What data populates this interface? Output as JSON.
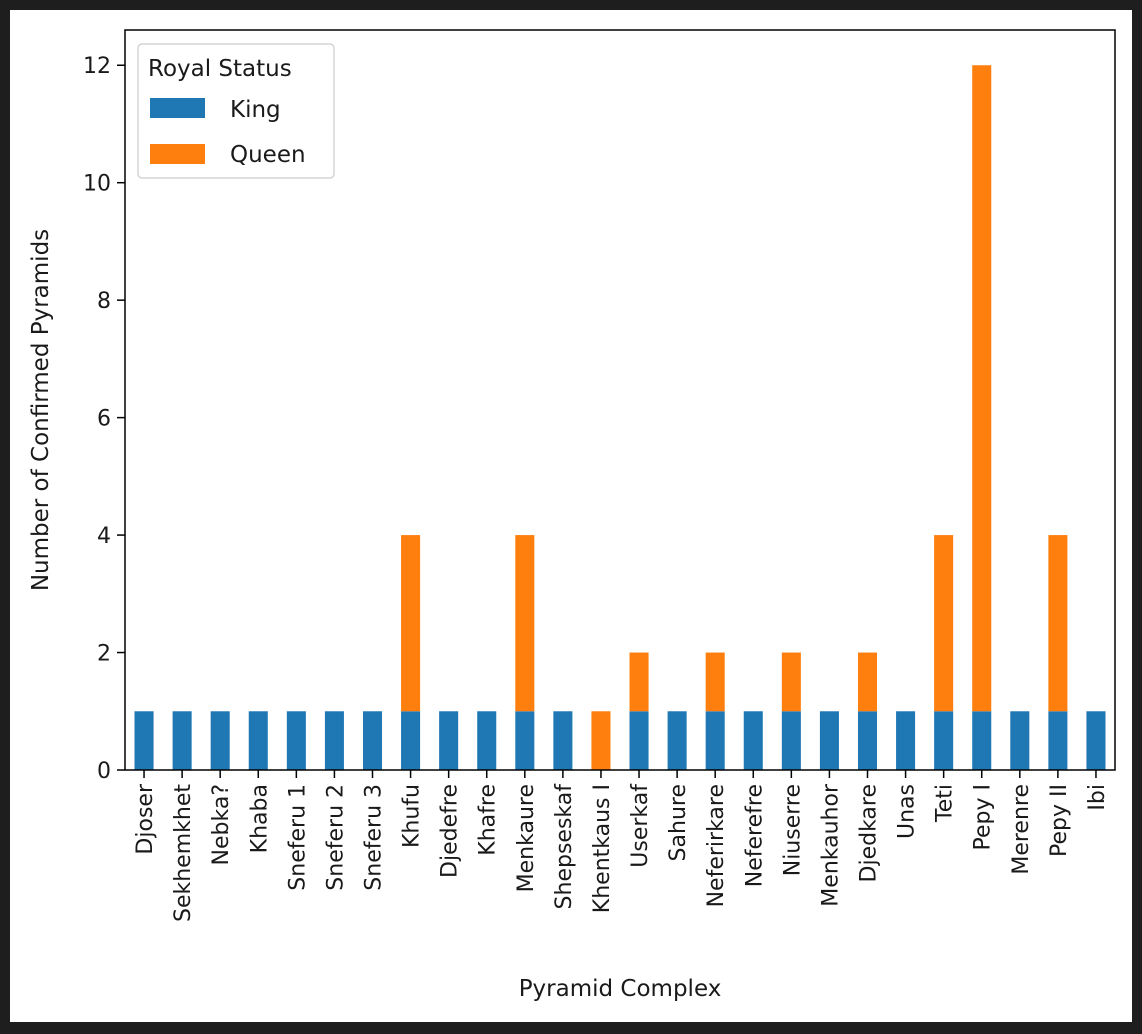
{
  "chart_data": {
    "type": "bar",
    "stacked": true,
    "xlabel": "Pyramid Complex",
    "ylabel": "Number of Confirmed Pyramids",
    "ylim": [
      0,
      12.6
    ],
    "yticks": [
      0,
      2,
      4,
      6,
      8,
      10,
      12
    ],
    "grid": false,
    "legend": {
      "title": "Royal Status",
      "placement": "top-left"
    },
    "categories": [
      "Djoser",
      "Sekhemkhet",
      "Nebka?",
      "Khaba",
      "Sneferu 1",
      "Sneferu 2",
      "Sneferu 3",
      "Khufu",
      "Djedefre",
      "Khafre",
      "Menkaure",
      "Shepseskaf",
      "Khentkaus I",
      "Userkaf",
      "Sahure",
      "Neferirkare",
      "Neferefre",
      "Niuserre",
      "Menkauhor",
      "Djedkare",
      "Unas",
      "Teti",
      "Pepy I",
      "Merenre",
      "Pepy II",
      "Ibi"
    ],
    "series": [
      {
        "name": "King",
        "color": "#1f77b4",
        "values": [
          1,
          1,
          1,
          1,
          1,
          1,
          1,
          1,
          1,
          1,
          1,
          1,
          0,
          1,
          1,
          1,
          1,
          1,
          1,
          1,
          1,
          1,
          1,
          1,
          1,
          1
        ]
      },
      {
        "name": "Queen",
        "color": "#ff7f0e",
        "values": [
          0,
          0,
          0,
          0,
          0,
          0,
          0,
          3,
          0,
          0,
          3,
          0,
          1,
          1,
          0,
          1,
          0,
          1,
          0,
          1,
          0,
          3,
          11,
          0,
          3,
          0
        ]
      }
    ]
  }
}
